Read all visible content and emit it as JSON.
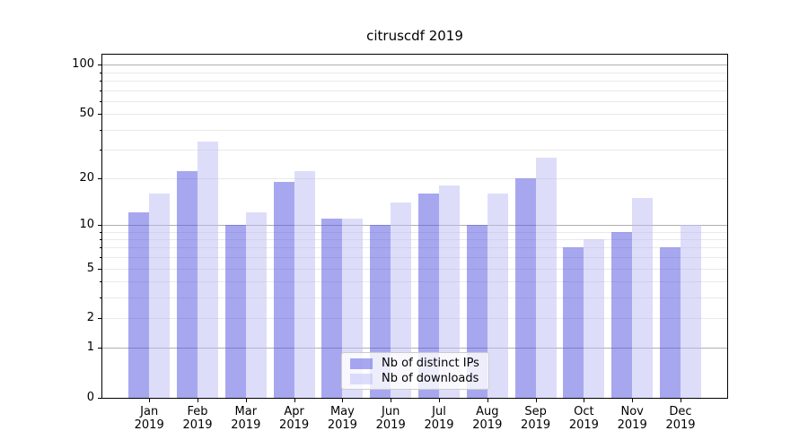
{
  "chart_data": {
    "type": "bar",
    "title": "citruscdf 2019",
    "categories": [
      {
        "month": "Jan",
        "year": "2019"
      },
      {
        "month": "Feb",
        "year": "2019"
      },
      {
        "month": "Mar",
        "year": "2019"
      },
      {
        "month": "Apr",
        "year": "2019"
      },
      {
        "month": "May",
        "year": "2019"
      },
      {
        "month": "Jun",
        "year": "2019"
      },
      {
        "month": "Jul",
        "year": "2019"
      },
      {
        "month": "Aug",
        "year": "2019"
      },
      {
        "month": "Sep",
        "year": "2019"
      },
      {
        "month": "Oct",
        "year": "2019"
      },
      {
        "month": "Nov",
        "year": "2019"
      },
      {
        "month": "Dec",
        "year": "2019"
      }
    ],
    "series": [
      {
        "name": "Nb of distinct IPs",
        "color": "rgba(79,79,225,0.5)",
        "values": [
          12,
          22,
          10,
          19,
          11,
          10,
          16,
          10,
          20,
          7,
          9,
          7
        ]
      },
      {
        "name": "Nb of downloads",
        "color": "rgba(187,187,245,0.5)",
        "values": [
          16,
          34,
          12,
          22,
          11,
          14,
          18,
          16,
          27,
          8,
          15,
          10
        ]
      }
    ],
    "yscale": "log1p",
    "ylim": [
      0,
      116
    ],
    "yticks": [
      100,
      50,
      20,
      10,
      5,
      2,
      1,
      0
    ],
    "ytick_labels": [
      "100",
      "50",
      "20",
      "10",
      "5",
      "2",
      "1",
      "0"
    ],
    "major_gridlines": [
      1,
      10,
      100
    ],
    "minor_gridlines": [
      2,
      3,
      4,
      5,
      6,
      7,
      8,
      9,
      20,
      30,
      40,
      50,
      60,
      70,
      80,
      90
    ],
    "grid": true,
    "legend": {
      "position": "lower center"
    },
    "colors": {
      "major_grid": "#b0b0b0",
      "minor_grid": "#e9e9e9",
      "spine": "#000000",
      "background": "#ffffff"
    }
  }
}
